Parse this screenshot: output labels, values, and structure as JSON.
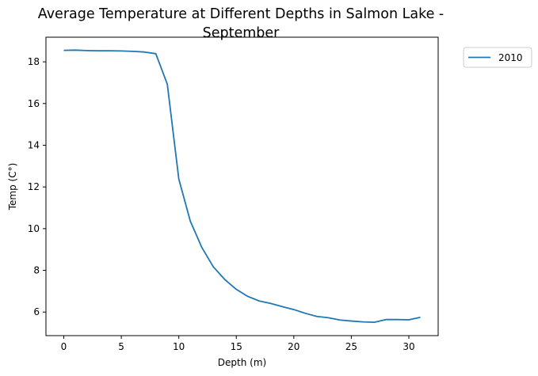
{
  "chart_data": {
    "type": "line",
    "title": "Average Temperature at Different Depths in Salmon Lake - September",
    "title_lines": [
      "Average Temperature at Different Depths in Salmon Lake -",
      "September"
    ],
    "xlabel": "Depth (m)",
    "ylabel": "Temp (C°)",
    "xlim": [
      -1.55,
      32.55
    ],
    "ylim": [
      4.87,
      19.18
    ],
    "xticks": [
      0,
      5,
      10,
      15,
      20,
      25,
      30
    ],
    "yticks": [
      6,
      8,
      10,
      12,
      14,
      16,
      18
    ],
    "grid": false,
    "legend": {
      "position": "outside-top-right"
    },
    "series": [
      {
        "name": "2010",
        "color": "#1f77b4",
        "x": [
          0,
          1,
          2,
          3,
          4,
          5,
          6,
          7,
          8,
          9,
          10,
          11,
          12,
          13,
          14,
          15,
          16,
          17,
          18,
          19,
          20,
          21,
          22,
          23,
          24,
          25,
          26,
          27,
          28,
          29,
          30,
          31
        ],
        "y": [
          18.55,
          18.56,
          18.54,
          18.53,
          18.53,
          18.52,
          18.5,
          18.47,
          18.39,
          16.93,
          12.38,
          10.36,
          9.1,
          8.17,
          7.56,
          7.09,
          6.75,
          6.53,
          6.41,
          6.26,
          6.12,
          5.94,
          5.79,
          5.73,
          5.62,
          5.57,
          5.53,
          5.51,
          5.64,
          5.64,
          5.63,
          5.75
        ]
      }
    ]
  }
}
